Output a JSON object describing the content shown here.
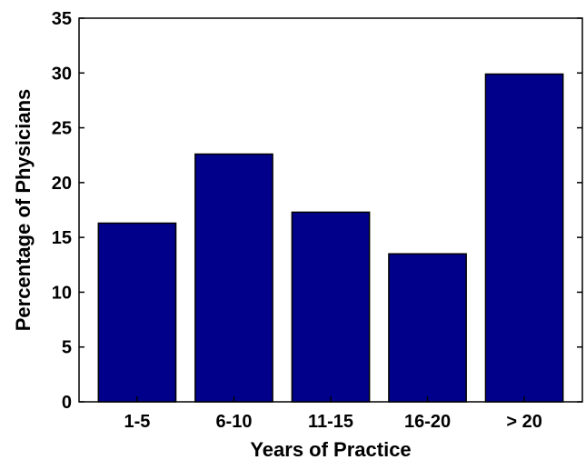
{
  "chart_data": {
    "type": "bar",
    "categories": [
      "1-5",
      "6-10",
      "11-15",
      "16-20",
      "> 20"
    ],
    "values": [
      16.3,
      22.6,
      17.3,
      13.5,
      29.9
    ],
    "title": "",
    "xlabel": "Years of Practice",
    "ylabel": "Percentage of Physicians",
    "ylim": [
      0,
      35
    ],
    "yticks": [
      0,
      5,
      10,
      15,
      20,
      25,
      30,
      35
    ],
    "grid": false,
    "colors": {
      "bar": "#00008b",
      "bar_edge": "#000000",
      "axis": "#000000"
    }
  }
}
